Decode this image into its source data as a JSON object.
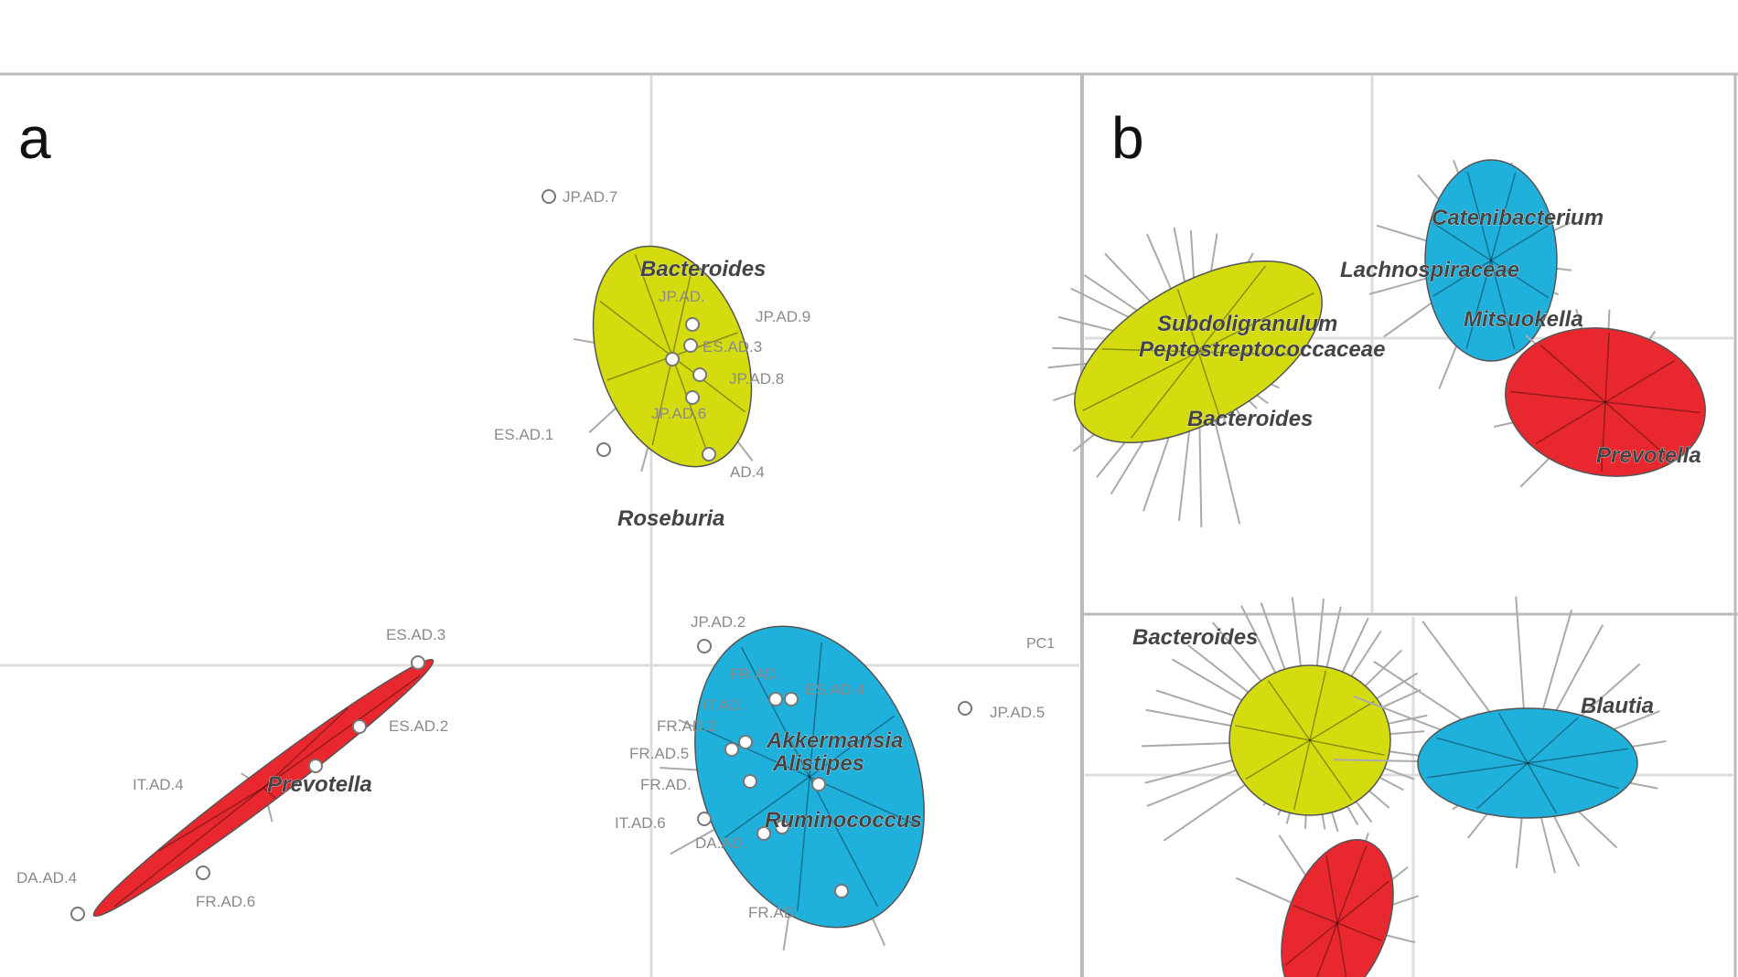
{
  "figure": {
    "panel_a_label": "a",
    "panel_b_label": "b",
    "axis_label": "PC1"
  },
  "colors": {
    "cluster_1": "#d4dc10",
    "cluster_2": "#e8282e",
    "cluster_3": "#20b0dc",
    "grid": "#cfcfcf"
  },
  "chart_data": [
    {
      "type": "scatter",
      "panel": "a",
      "grid": true,
      "clusters": [
        {
          "color": "#d4dc10",
          "genera": [
            "Bacteroides",
            "Roseburia"
          ],
          "samples": [
            "JP.AD.7",
            "JP.AD.",
            "JP.AD.9",
            "ES.AD.3",
            "JP.AD.8",
            "JP.AD.6",
            "ES.AD.1",
            "AD.4"
          ]
        },
        {
          "color": "#e8282e",
          "genera": [
            "Prevotella"
          ],
          "samples": [
            "ES.AD.3",
            "ES.AD.2",
            "IT.AD.4",
            "DA.AD.4",
            "FR.AD.6"
          ]
        },
        {
          "color": "#20b0dc",
          "genera": [
            "Akkermansia",
            "Alistipes",
            "Ruminococcus"
          ],
          "samples": [
            "JP.AD.2",
            "FR.AD.",
            "ES.AD.4",
            "IT.AD.",
            "FR.AD.2",
            "FR.AD.5",
            "FR.AD.",
            "IT.AD.6",
            "DA.AD.",
            "JP.AD.5",
            "FR.AD."
          ]
        }
      ]
    },
    {
      "type": "scatter",
      "panel": "b-top",
      "grid": true,
      "genera": [
        "Catenibacterium",
        "Lachnospiraceae",
        "Mitsuokella",
        "Subdoligranulum",
        "Peptostreptococcaceae",
        "Bacteroides",
        "Prevotella"
      ]
    },
    {
      "type": "scatter",
      "panel": "b-bottom",
      "grid": true,
      "genera": [
        "Bacteroides",
        "Blautia"
      ]
    }
  ]
}
